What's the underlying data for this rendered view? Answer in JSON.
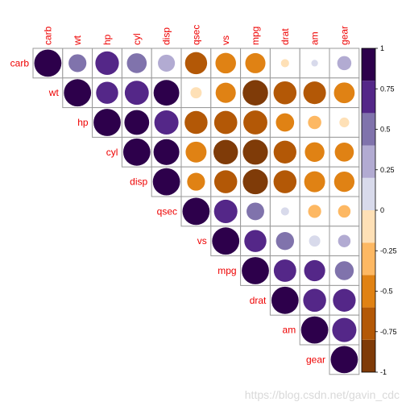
{
  "chart_data": {
    "type": "heatmap",
    "title": "",
    "variables": [
      "carb",
      "wt",
      "hp",
      "cyl",
      "disp",
      "qsec",
      "vs",
      "mpg",
      "drat",
      "am",
      "gear"
    ],
    "layout": "upper-triangle",
    "glyph": "circle",
    "matrix": [
      [
        1.0,
        0.43,
        0.75,
        0.53,
        0.39,
        -0.66,
        -0.57,
        -0.55,
        -0.09,
        0.06,
        0.27
      ],
      [
        0.43,
        1.0,
        0.66,
        0.78,
        0.89,
        -0.17,
        -0.55,
        -0.87,
        -0.71,
        -0.69,
        -0.58
      ],
      [
        0.75,
        0.66,
        1.0,
        0.83,
        0.79,
        -0.71,
        -0.72,
        -0.78,
        -0.45,
        -0.24,
        -0.13
      ],
      [
        0.53,
        0.78,
        0.83,
        1.0,
        0.9,
        -0.59,
        -0.81,
        -0.85,
        -0.7,
        -0.52,
        -0.49
      ],
      [
        0.39,
        0.89,
        0.79,
        0.9,
        1.0,
        -0.43,
        -0.71,
        -0.85,
        -0.71,
        -0.59,
        -0.56
      ],
      [
        -0.66,
        -0.17,
        -0.71,
        -0.59,
        -0.43,
        1.0,
        0.74,
        0.42,
        0.09,
        -0.23,
        -0.21
      ],
      [
        -0.57,
        -0.55,
        -0.72,
        -0.81,
        -0.71,
        0.74,
        1.0,
        0.66,
        0.44,
        0.17,
        0.21
      ],
      [
        -0.55,
        -0.87,
        -0.78,
        -0.85,
        -0.85,
        0.42,
        0.66,
        1.0,
        0.68,
        0.6,
        0.48
      ],
      [
        -0.09,
        -0.71,
        -0.45,
        -0.7,
        -0.71,
        0.09,
        0.44,
        0.68,
        1.0,
        0.71,
        0.7
      ],
      [
        0.06,
        -0.69,
        -0.24,
        -0.52,
        -0.59,
        -0.23,
        0.17,
        0.6,
        0.71,
        1.0,
        0.79
      ],
      [
        0.27,
        -0.58,
        -0.13,
        -0.49,
        -0.56,
        -0.21,
        0.21,
        0.48,
        0.7,
        0.79,
        1.0
      ]
    ],
    "color_scale": {
      "range": [
        -1,
        1
      ],
      "ticks": [
        "1",
        "0.75",
        "0.5",
        "0.25",
        "0",
        "-0.25",
        "-0.5",
        "-0.75",
        "-1"
      ],
      "bins_from_low": [
        "#7f3b08",
        "#b35806",
        "#e08214",
        "#fdb863",
        "#fee0b6",
        "#d8daeb",
        "#b2abd2",
        "#8073ac",
        "#542788",
        "#2d004b"
      ]
    },
    "legend_position": "right",
    "label_color": "#ee0000",
    "grid_color": "#999999"
  },
  "watermark": "https://blog.csdn.net/gavin_cdc"
}
